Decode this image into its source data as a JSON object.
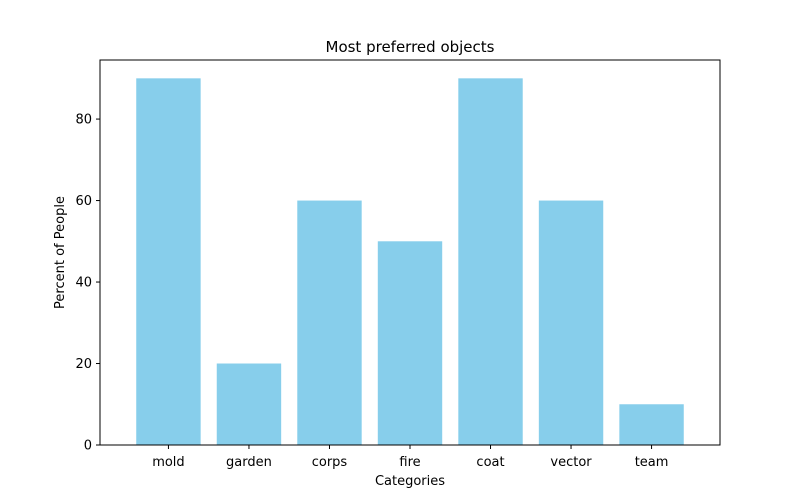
{
  "chart_data": {
    "type": "bar",
    "title": "Most preferred objects",
    "xlabel": "Categories",
    "ylabel": "Percent of People",
    "categories": [
      "mold",
      "garden",
      "corps",
      "fire",
      "coat",
      "vector",
      "team"
    ],
    "values": [
      90,
      20,
      60,
      50,
      90,
      60,
      10
    ],
    "ylim": [
      0,
      94.5
    ],
    "yticks": [
      0,
      20,
      40,
      60,
      80
    ],
    "grid": false,
    "legend": null,
    "colors": {
      "bar": "#87ceeb",
      "axis": "#000000",
      "background": "#ffffff"
    }
  }
}
